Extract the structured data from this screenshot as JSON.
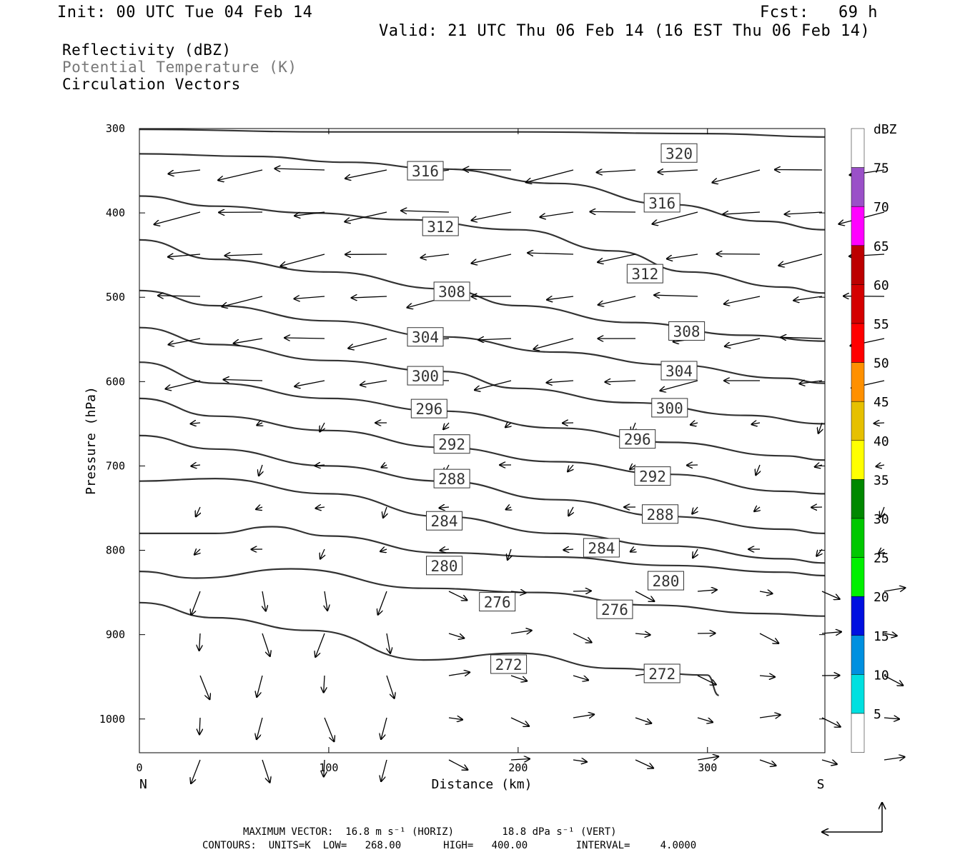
{
  "header": {
    "init": "Init: 00 UTC Tue 04 Feb 14",
    "fcst": "Fcst:   69 h",
    "valid": "Valid: 21 UTC Thu 06 Feb 14 (16 EST Thu 06 Feb 14)"
  },
  "legend": {
    "line1": "Reflectivity (dBZ)",
    "line2": "Potential Temperature (K)",
    "line3": "Circulation Vectors"
  },
  "footer": {
    "line1": "MAXIMUM VECTOR:  16.8 m s⁻¹ (HORIZ)        18.8 dPa s⁻¹ (VERT)",
    "line2": "CONTOURS:  UNITS=K  LOW=   268.00       HIGH=   400.00        INTERVAL=     4.0000"
  },
  "colors": {
    "contour": "#333333",
    "scale": [
      "#ffffff",
      "#00e0e0",
      "#0090e0",
      "#0010e0",
      "#00f000",
      "#00c800",
      "#008800",
      "#ffff00",
      "#e6c000",
      "#ff9000",
      "#ff0000",
      "#d40000",
      "#bc0000",
      "#ff00ff",
      "#9a50c8",
      "#ffffff"
    ]
  },
  "chart_data": {
    "type": "cross-section",
    "xlabel": "Distance (km)",
    "ylabel": "Pressure (hPa)",
    "xlim": [
      0,
      362
    ],
    "ylim": [
      1040,
      300
    ],
    "x_ticks": [
      0,
      100,
      200,
      300
    ],
    "y_ticks": [
      300,
      400,
      500,
      600,
      700,
      800,
      900,
      1000
    ],
    "x_end_labels": {
      "left": "N",
      "right": "S"
    },
    "colorbar": {
      "unit": "dBZ",
      "levels": [
        5,
        10,
        15,
        20,
        25,
        30,
        35,
        40,
        45,
        50,
        55,
        60,
        65,
        70,
        75
      ]
    },
    "contour_interval": 4,
    "contours": [
      {
        "value": 320,
        "points": [
          [
            0,
            301
          ],
          [
            100,
            304
          ],
          [
            200,
            304
          ],
          [
            300,
            306
          ],
          [
            362,
            310
          ]
        ],
        "labels": [
          [
            285,
            329
          ]
        ]
      },
      {
        "value": 316,
        "points": [
          [
            0,
            330
          ],
          [
            60,
            333
          ],
          [
            110,
            340
          ],
          [
            160,
            348
          ],
          [
            220,
            365
          ],
          [
            280,
            390
          ],
          [
            330,
            410
          ],
          [
            362,
            420
          ]
        ],
        "labels": [
          [
            151,
            350
          ],
          [
            276,
            388
          ]
        ]
      },
      {
        "value": 312,
        "points": [
          [
            0,
            380
          ],
          [
            40,
            392
          ],
          [
            90,
            400
          ],
          [
            140,
            408
          ],
          [
            200,
            420
          ],
          [
            250,
            445
          ],
          [
            290,
            470
          ],
          [
            340,
            488
          ],
          [
            362,
            495
          ]
        ],
        "labels": [
          [
            159,
            416
          ],
          [
            267,
            472
          ]
        ]
      },
      {
        "value": 308,
        "points": [
          [
            0,
            432
          ],
          [
            40,
            455
          ],
          [
            100,
            470
          ],
          [
            160,
            490
          ],
          [
            200,
            510
          ],
          [
            260,
            530
          ],
          [
            320,
            545
          ],
          [
            362,
            552
          ]
        ],
        "labels": [
          [
            165,
            493
          ],
          [
            289,
            540
          ]
        ]
      },
      {
        "value": 304,
        "points": [
          [
            0,
            492
          ],
          [
            40,
            510
          ],
          [
            100,
            528
          ],
          [
            160,
            547
          ],
          [
            220,
            565
          ],
          [
            280,
            580
          ],
          [
            340,
            596
          ],
          [
            362,
            602
          ]
        ],
        "labels": [
          [
            151,
            547
          ],
          [
            285,
            587
          ]
        ]
      },
      {
        "value": 300,
        "points": [
          [
            0,
            536
          ],
          [
            40,
            556
          ],
          [
            100,
            575
          ],
          [
            160,
            588
          ],
          [
            200,
            608
          ],
          [
            260,
            625
          ],
          [
            320,
            640
          ],
          [
            362,
            650
          ]
        ],
        "labels": [
          [
            151,
            593
          ],
          [
            280,
            631
          ]
        ]
      },
      {
        "value": 296,
        "points": [
          [
            0,
            577
          ],
          [
            40,
            602
          ],
          [
            100,
            620
          ],
          [
            160,
            635
          ],
          [
            220,
            655
          ],
          [
            280,
            672
          ],
          [
            340,
            688
          ],
          [
            362,
            693
          ]
        ],
        "labels": [
          [
            153,
            632
          ],
          [
            263,
            668
          ]
        ]
      },
      {
        "value": 292,
        "points": [
          [
            0,
            620
          ],
          [
            40,
            641
          ],
          [
            100,
            658
          ],
          [
            160,
            678
          ],
          [
            220,
            695
          ],
          [
            280,
            710
          ],
          [
            340,
            730
          ],
          [
            362,
            733
          ]
        ],
        "labels": [
          [
            165,
            674
          ],
          [
            271,
            712
          ]
        ]
      },
      {
        "value": 288,
        "points": [
          [
            0,
            664
          ],
          [
            40,
            680
          ],
          [
            100,
            700
          ],
          [
            160,
            718
          ],
          [
            220,
            740
          ],
          [
            280,
            760
          ],
          [
            340,
            775
          ],
          [
            362,
            780
          ]
        ],
        "labels": [
          [
            165,
            715
          ],
          [
            275,
            757
          ]
        ]
      },
      {
        "value": 284,
        "points": [
          [
            0,
            718
          ],
          [
            40,
            715
          ],
          [
            100,
            733
          ],
          [
            160,
            760
          ],
          [
            220,
            780
          ],
          [
            280,
            795
          ],
          [
            340,
            810
          ],
          [
            362,
            815
          ]
        ],
        "labels": [
          [
            161,
            765
          ],
          [
            244,
            797
          ]
        ]
      },
      {
        "value": 280,
        "points": [
          [
            0,
            780
          ],
          [
            40,
            780
          ],
          [
            70,
            772
          ],
          [
            100,
            783
          ],
          [
            160,
            803
          ],
          [
            220,
            808
          ],
          [
            280,
            818
          ],
          [
            340,
            826
          ],
          [
            362,
            830
          ]
        ],
        "labels": [
          [
            161,
            818
          ],
          [
            278,
            836
          ]
        ]
      },
      {
        "value": 276,
        "points": [
          [
            0,
            825
          ],
          [
            30,
            833
          ],
          [
            80,
            822
          ],
          [
            150,
            845
          ],
          [
            210,
            850
          ],
          [
            270,
            865
          ],
          [
            330,
            875
          ],
          [
            362,
            878
          ]
        ],
        "labels": [
          [
            189,
            861
          ],
          [
            251,
            870
          ]
        ]
      },
      {
        "value": 272,
        "points": [
          [
            0,
            862
          ],
          [
            40,
            880
          ],
          [
            90,
            895
          ],
          [
            150,
            930
          ],
          [
            200,
            922
          ],
          [
            250,
            940
          ],
          [
            300,
            948
          ],
          [
            306,
            972
          ]
        ],
        "labels": [
          [
            195,
            935
          ],
          [
            276,
            946
          ]
        ]
      }
    ]
  }
}
